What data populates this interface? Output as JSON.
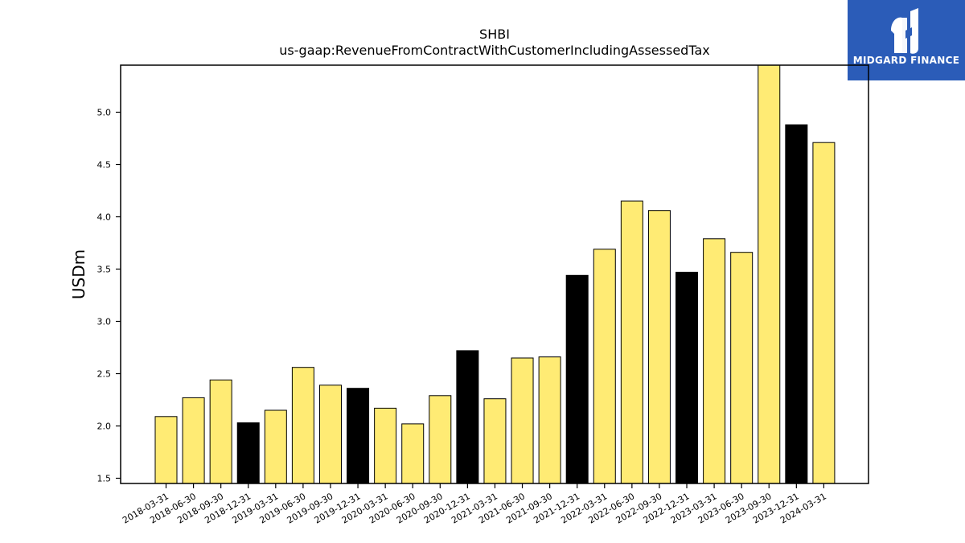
{
  "chart_data": {
    "type": "bar",
    "title": "SHBI",
    "subtitle": "us-gaap:RevenueFromContractWithCustomerIncludingAssessedTax",
    "xlabel": "",
    "ylabel": "USDm",
    "ylim": [
      1.45,
      5.45
    ],
    "yticks": [
      "1.5",
      "2.0",
      "2.5",
      "3.0",
      "3.5",
      "4.0",
      "4.5",
      "5.0"
    ],
    "grid": false,
    "categories": [
      "2018-03-31",
      "2018-06-30",
      "2018-09-30",
      "2018-12-31",
      "2019-03-31",
      "2019-06-30",
      "2019-09-30",
      "2019-12-31",
      "2020-03-31",
      "2020-06-30",
      "2020-09-30",
      "2020-12-31",
      "2021-03-31",
      "2021-06-30",
      "2021-09-30",
      "2021-12-31",
      "2022-03-31",
      "2022-06-30",
      "2022-09-30",
      "2022-12-31",
      "2023-03-31",
      "2023-06-30",
      "2023-09-30",
      "2023-12-31",
      "2024-03-31"
    ],
    "values": [
      2.09,
      2.27,
      2.44,
      2.03,
      2.15,
      2.56,
      2.39,
      2.36,
      2.17,
      2.02,
      2.29,
      2.72,
      2.26,
      2.65,
      2.66,
      3.44,
      3.69,
      4.15,
      4.06,
      3.47,
      3.79,
      3.66,
      5.55,
      4.88,
      4.71
    ],
    "bar_colors": [
      "#ffeb74",
      "#ffeb74",
      "#ffeb74",
      "#000000",
      "#ffeb74",
      "#ffeb74",
      "#ffeb74",
      "#000000",
      "#ffeb74",
      "#ffeb74",
      "#ffeb74",
      "#000000",
      "#ffeb74",
      "#ffeb74",
      "#ffeb74",
      "#000000",
      "#ffeb74",
      "#ffeb74",
      "#ffeb74",
      "#000000",
      "#ffeb74",
      "#ffeb74",
      "#ffeb74",
      "#000000",
      "#ffeb74"
    ]
  },
  "logo": {
    "text": "MIDGARD FINANCE",
    "background": "#2b5cb8"
  }
}
